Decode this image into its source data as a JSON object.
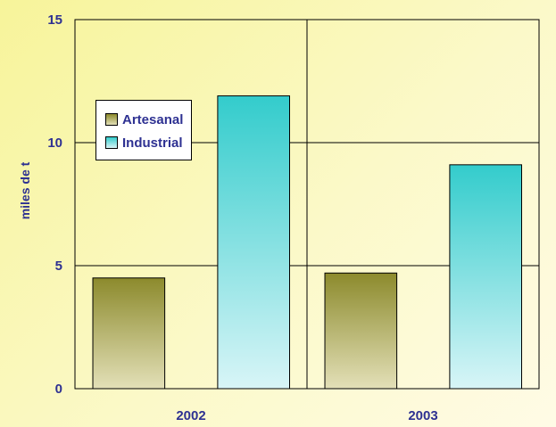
{
  "chart_data": {
    "type": "bar",
    "title": "",
    "xlabel": "",
    "ylabel": "miles de t",
    "categories": [
      "2002",
      "2003"
    ],
    "series": [
      {
        "name": "Artesanal",
        "values": [
          4.5,
          4.7
        ],
        "color": "#8a8a2a"
      },
      {
        "name": "Industrial",
        "values": [
          11.9,
          9.1
        ],
        "color": "#33cccc"
      }
    ],
    "ylim": [
      0,
      15
    ],
    "yticks": [
      0,
      5,
      10,
      15
    ],
    "grid": true,
    "legend": "top-left"
  }
}
